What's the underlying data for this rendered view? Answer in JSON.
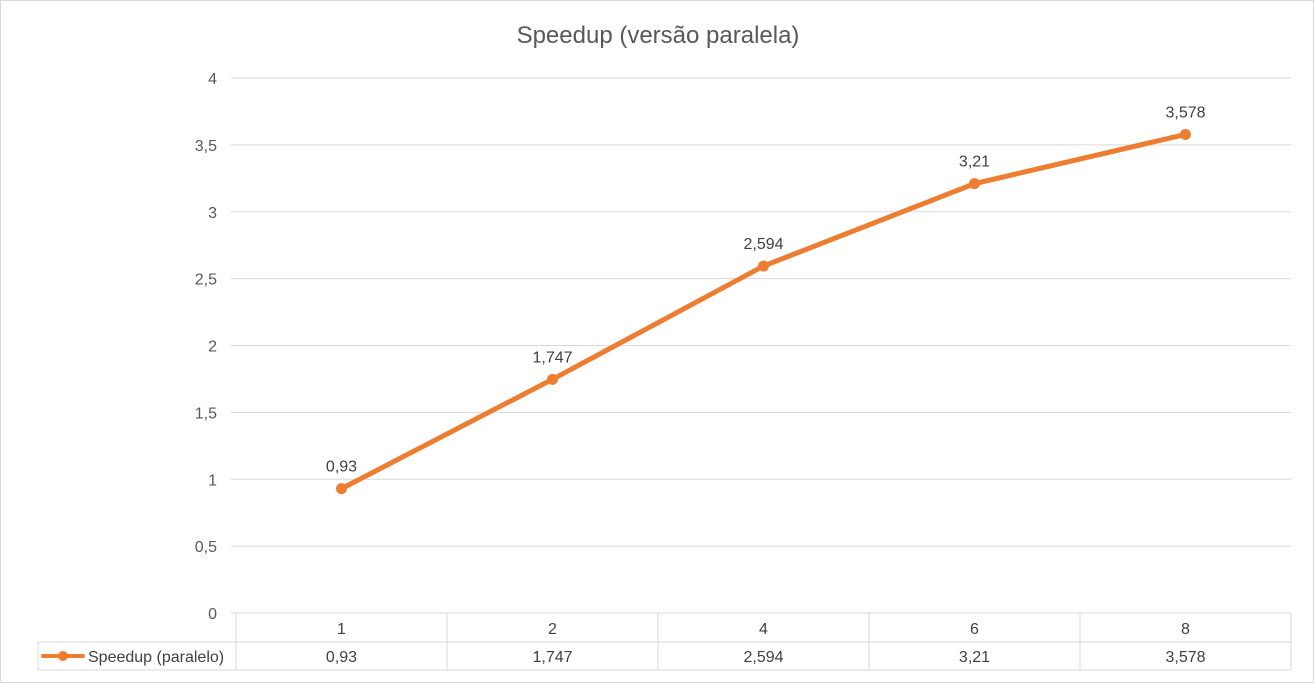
{
  "chart_data": {
    "type": "line",
    "title": "Speedup (versão paralela)",
    "xlabel": "",
    "ylabel": "",
    "categories": [
      "1",
      "2",
      "4",
      "6",
      "8"
    ],
    "series": [
      {
        "name": "Speedup (paralelo)",
        "values": [
          0.93,
          1.747,
          2.594,
          3.21,
          3.578
        ],
        "labels": [
          "0,93",
          "1,747",
          "2,594",
          "3,21",
          "3,578"
        ],
        "color": "#ED7D31"
      }
    ],
    "ylim": [
      0,
      4
    ],
    "y_ticks": [
      0,
      0.5,
      1,
      1.5,
      2,
      2.5,
      3,
      3.5,
      4
    ],
    "y_tick_labels": [
      "0",
      "0,5",
      "1",
      "1,5",
      "2",
      "2,5",
      "3",
      "3,5",
      "4"
    ],
    "grid": true,
    "legend": "data table",
    "data_table": true,
    "colors": {
      "grid": "#d9d9d9",
      "text": "#595959",
      "line": "#ED7D31"
    }
  }
}
